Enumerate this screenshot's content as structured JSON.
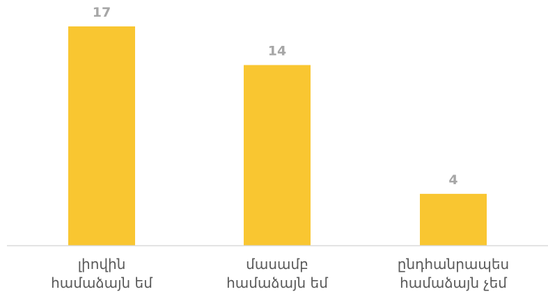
{
  "chart_data": {
    "type": "bar",
    "categories": [
      [
        "լիովին",
        "համաձայն եմ"
      ],
      [
        "մասամբ",
        "համաձայն եմ"
      ],
      [
        "ընդհանրապես",
        "համաձայն չեմ"
      ]
    ],
    "values": [
      17,
      14,
      4
    ],
    "ylim": [
      0,
      17
    ],
    "grid": false,
    "legend": "none",
    "colors": {
      "bar": "#f9c631",
      "axis": "#d9d9d9",
      "value_label": "#a6a6a6",
      "category_label": "#595959"
    }
  }
}
